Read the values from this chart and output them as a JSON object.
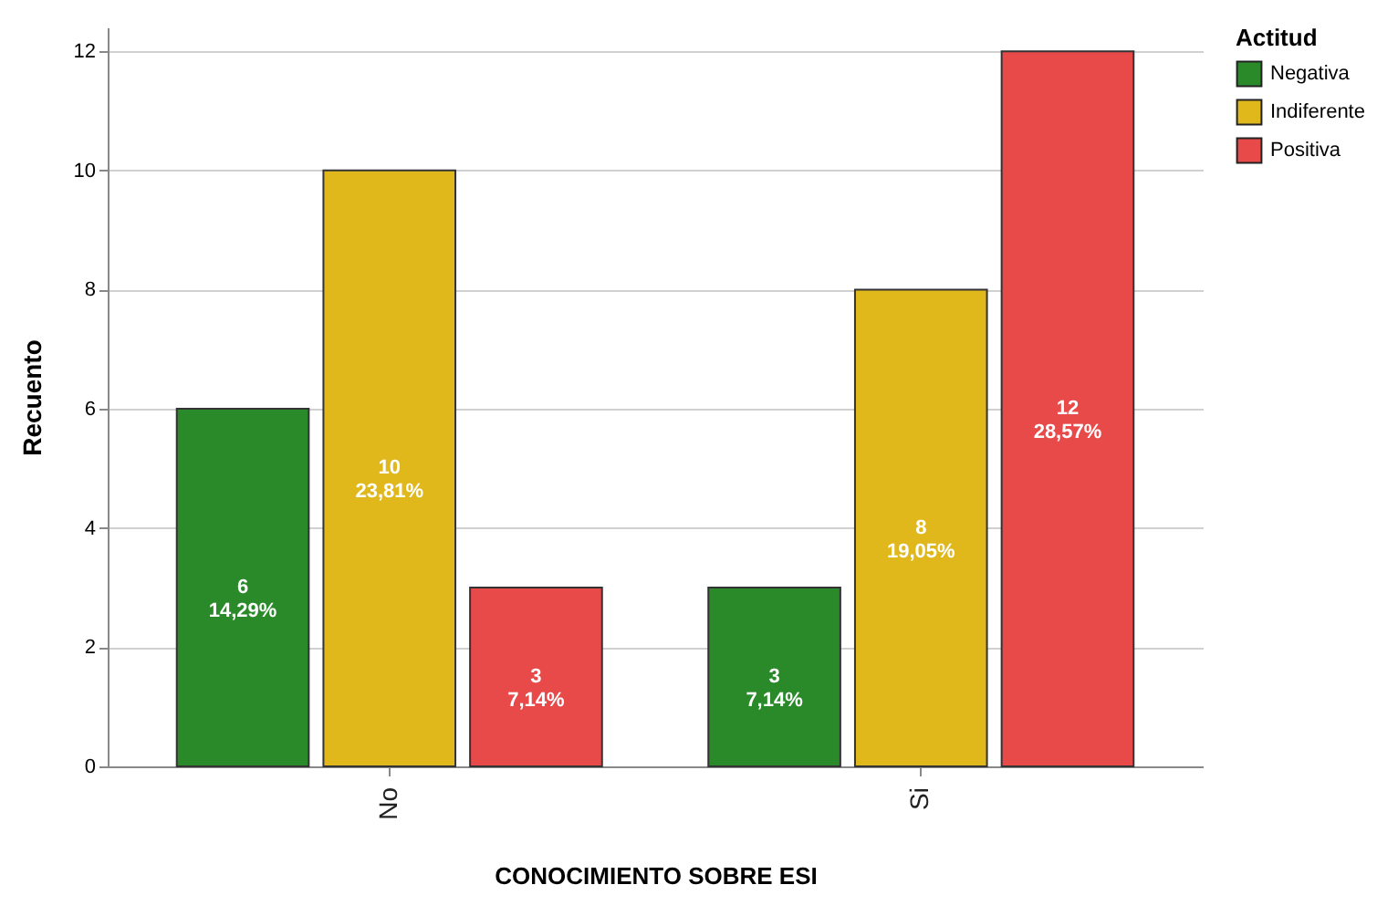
{
  "chart_data": {
    "type": "bar",
    "xlabel": "CONOCIMIENTO SOBRE ESI",
    "ylabel": "Recuento",
    "legend_title": "Actitud",
    "categories": [
      "No",
      "Si"
    ],
    "series": [
      {
        "name": "Negativa",
        "color": "#2a8a2a",
        "values": [
          6,
          3
        ],
        "value_labels": [
          "6\n14,29%",
          "3\n7,14%"
        ]
      },
      {
        "name": "Indiferente",
        "color": "#e0b81c",
        "values": [
          10,
          8
        ],
        "value_labels": [
          "10\n23,81%",
          "8\n19,05%"
        ]
      },
      {
        "name": "Positiva",
        "color": "#e84a4a",
        "values": [
          3,
          12
        ],
        "value_labels": [
          "3\n7,14%",
          "12\n28,57%"
        ]
      }
    ],
    "ylim": [
      0,
      12.4
    ],
    "yticks": [
      0,
      2,
      4,
      6,
      8,
      10,
      12
    ],
    "grid": "y",
    "legend": "top right"
  }
}
